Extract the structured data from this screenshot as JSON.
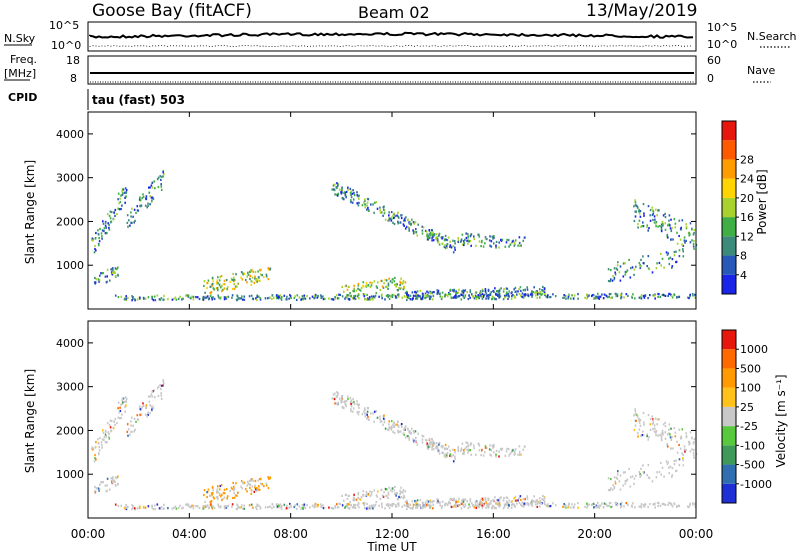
{
  "header": {
    "station": "Goose Bay (fitACF)",
    "beam": "Beam 02",
    "date": "13/May/2019"
  },
  "panels": {
    "nsky_label": "N.Sky",
    "nsearch_label": "N.Search",
    "nsky_ticks": [
      "10^5",
      "10^0"
    ],
    "nsearch_ticks": [
      "10^5",
      "10^0"
    ],
    "freq_label_1": "Freq.",
    "freq_label_2": "[MHz]",
    "freq_ticks": [
      "18",
      "8"
    ],
    "nave_label": "Nave",
    "nave_ticks": [
      "60",
      "0"
    ],
    "cpid_label": "CPID",
    "cpid_text": "tau (fast) 503"
  },
  "chart_data": [
    {
      "type": "heatmap",
      "name": "power",
      "ylabel": "Slant Range [km]",
      "xlabel": "Time UT",
      "y_ticks": [
        "1000",
        "2000",
        "3000",
        "4000"
      ],
      "x_ticks": [
        "00:00",
        "04:00",
        "08:00",
        "12:00",
        "16:00",
        "20:00",
        "00:00"
      ],
      "colorbar": {
        "label": "Power [dB]",
        "ticks": [
          "4",
          "8",
          "12",
          "16",
          "20",
          "24",
          "28"
        ],
        "colors": [
          "#1a23e8",
          "#2858b8",
          "#3c8b7a",
          "#3fae45",
          "#a9d32c",
          "#ffd400",
          "#ff9d00",
          "#ff5a00",
          "#e8170e"
        ]
      }
    },
    {
      "type": "heatmap",
      "name": "velocity",
      "ylabel": "Slant Range [km]",
      "xlabel": "Time UT",
      "y_ticks": [
        "1000",
        "2000",
        "3000",
        "4000"
      ],
      "x_ticks": [
        "00:00",
        "04:00",
        "08:00",
        "12:00",
        "16:00",
        "20:00",
        "00:00"
      ],
      "colorbar": {
        "label": "Velocity [m s⁻¹]",
        "ticks": [
          "1000",
          "500",
          "100",
          "25",
          "-25",
          "-100",
          "-500",
          "-1000"
        ],
        "colors": [
          "#1f2fd6",
          "#2f6fb0",
          "#3f9a5a",
          "#58c93c",
          "#c8c8c8",
          "#ffc21a",
          "#ff9a00",
          "#ff6a00",
          "#e8170e"
        ]
      }
    }
  ]
}
